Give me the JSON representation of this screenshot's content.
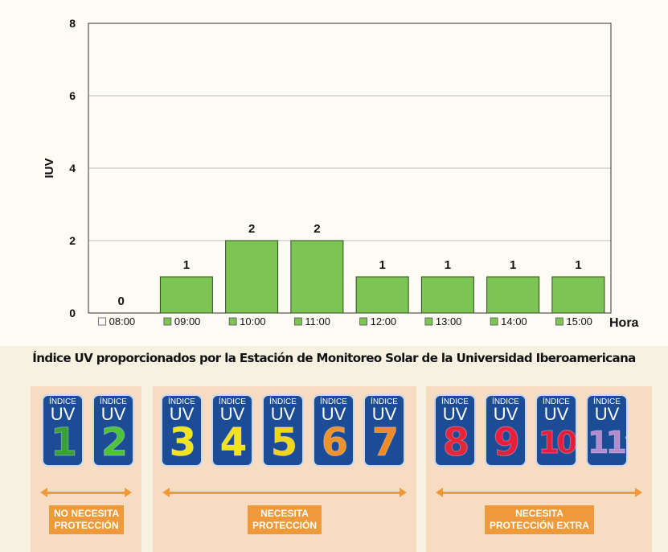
{
  "chart_data": {
    "type": "bar",
    "title": "",
    "ylabel": "IUV",
    "xlabel": "Hora",
    "ylim": [
      0,
      8
    ],
    "yticks": [
      "0",
      "2",
      "4",
      "6",
      "8"
    ],
    "categories": [
      "08:00",
      "09:00",
      "10:00",
      "11:00",
      "12:00",
      "13:00",
      "14:00",
      "15:00"
    ],
    "values": [
      0,
      1,
      2,
      2,
      1,
      1,
      1,
      1
    ],
    "data_labels": [
      "0",
      "1",
      "2",
      "2",
      "1",
      "1",
      "1",
      "1"
    ],
    "bar_color": "#7cc454",
    "bar_edge": "#2f4a1f",
    "grid": true,
    "legend_placement": "bottom"
  },
  "caption": "Índice UV proporcionados por la Estación de Monitoreo Solar de la Universidad Iberoamericana",
  "uv_scale": {
    "index_label": "ÍNDICE",
    "uv_label": "UV",
    "groups": [
      {
        "badge": [
          "NO NECESITA",
          "PROTECCIÓN"
        ],
        "cards": [
          {
            "value": "1",
            "color": "#3aa03a"
          },
          {
            "value": "2",
            "color": "#4cc23d"
          }
        ]
      },
      {
        "badge": [
          "NECESITA",
          "PROTECCIÓN"
        ],
        "cards": [
          {
            "value": "3",
            "color": "#f2e51c"
          },
          {
            "value": "4",
            "color": "#f5e21a"
          },
          {
            "value": "5",
            "color": "#f2d51a"
          },
          {
            "value": "6",
            "color": "#f0922a"
          },
          {
            "value": "7",
            "color": "#f08a22"
          }
        ]
      },
      {
        "badge": [
          "NECESITA",
          "PROTECCIÓN EXTRA"
        ],
        "cards": [
          {
            "value": "8",
            "color": "#e8243a"
          },
          {
            "value": "9",
            "color": "#e81e3c"
          },
          {
            "value": "10",
            "color": "#e41e3a"
          },
          {
            "value": "11⁺",
            "color": "#b48ad0"
          }
        ]
      }
    ]
  }
}
